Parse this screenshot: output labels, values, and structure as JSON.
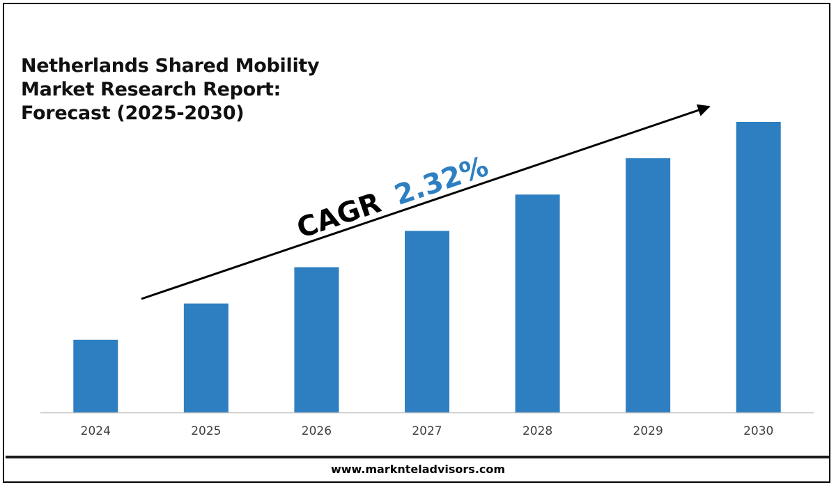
{
  "chart_data": {
    "type": "bar",
    "title": "Netherlands Shared Mobility Market Research Report: Forecast (2025-2030)",
    "categories": [
      "2024",
      "2025",
      "2026",
      "2027",
      "2028",
      "2029",
      "2030"
    ],
    "values": [
      1,
      1.5,
      2,
      2.5,
      3,
      3.5,
      4
    ],
    "annotation": {
      "prefix": "CAGR",
      "value": "2.32%"
    },
    "xlabel": "",
    "ylabel": "",
    "grid": false,
    "legend": "none",
    "colors": {
      "bar": "#2e7fc2",
      "cagr_value": "#2e7fc2",
      "text": "#000000",
      "axis": "#bfbfbf"
    }
  },
  "footer": {
    "url": "www.marknteladvisors.com"
  }
}
